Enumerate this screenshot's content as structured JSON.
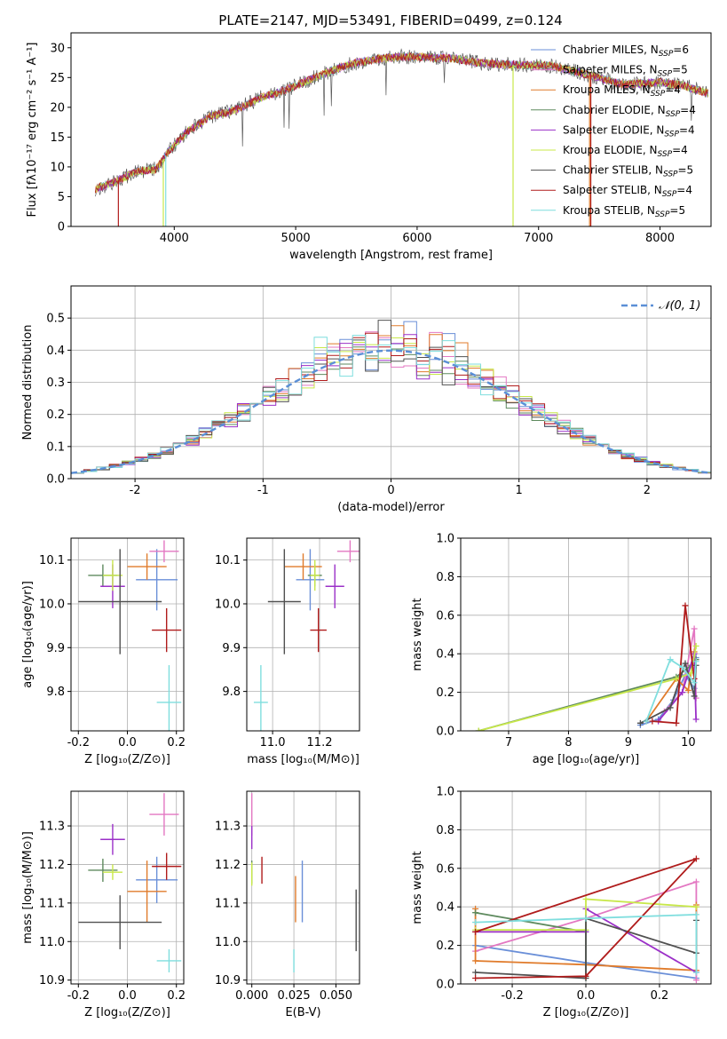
{
  "figure": {
    "title": "PLATE=2147, MJD=53491, FIBERID=0499, z=0.124"
  },
  "models": [
    {
      "label": "Chabrier MILES, N",
      "sub": "SSP",
      "suffix": "=6",
      "color": "#6a8fd8"
    },
    {
      "label": "Salpeter MILES, N",
      "sub": "SSP",
      "suffix": "=5",
      "color": "#e377c2"
    },
    {
      "label": "Kroupa MILES, N",
      "sub": "SSP",
      "suffix": "=4",
      "color": "#e07b2b"
    },
    {
      "label": "Chabrier ELODIE, N",
      "sub": "SSP",
      "suffix": "=4",
      "color": "#5e8a5e"
    },
    {
      "label": "Salpeter ELODIE, N",
      "sub": "SSP",
      "suffix": "=4",
      "color": "#9b30c8"
    },
    {
      "label": "Kroupa ELODIE, N",
      "sub": "SSP",
      "suffix": "=4",
      "color": "#c8e84a"
    },
    {
      "label": "Chabrier STELIB, N",
      "sub": "SSP",
      "suffix": "=5",
      "color": "#505050"
    },
    {
      "label": "Salpeter STELIB, N",
      "sub": "SSP",
      "suffix": "=4",
      "color": "#b01c1c"
    },
    {
      "label": "Kroupa STELIB, N",
      "sub": "SSP",
      "suffix": "=5",
      "color": "#7fdede"
    }
  ],
  "chart_data": [
    {
      "id": "spectrum",
      "type": "line",
      "xlabel": "wavelength [Angstrom, rest frame]",
      "ylabel": "Flux [fλ10⁻¹⁷ erg cm⁻² s⁻¹ A⁻¹]",
      "xlim": [
        3150,
        8420
      ],
      "ylim": [
        0,
        32.5
      ],
      "xticks": [
        4000,
        5000,
        6000,
        7000,
        8000
      ],
      "yticks": [
        0,
        5,
        10,
        15,
        20,
        25,
        30
      ],
      "continuum": [
        [
          3350,
          6.3
        ],
        [
          3500,
          7.4
        ],
        [
          3700,
          9.3
        ],
        [
          3850,
          9.6
        ],
        [
          3950,
          12.5
        ],
        [
          4100,
          15.8
        ],
        [
          4300,
          18.5
        ],
        [
          4500,
          19.5
        ],
        [
          4700,
          21.5
        ],
        [
          4900,
          22.8
        ],
        [
          5100,
          24.5
        ],
        [
          5300,
          26.2
        ],
        [
          5500,
          27.5
        ],
        [
          5700,
          28.2
        ],
        [
          5900,
          28.5
        ],
        [
          6100,
          28.4
        ],
        [
          6300,
          28.2
        ],
        [
          6500,
          27.5
        ],
        [
          6700,
          27.2
        ],
        [
          6900,
          27.1
        ],
        [
          7100,
          27.0
        ],
        [
          7400,
          25.5
        ],
        [
          7700,
          23.8
        ],
        [
          8000,
          24.2
        ],
        [
          8200,
          23.6
        ],
        [
          8400,
          22.3
        ]
      ],
      "dropouts": [
        {
          "model": 7,
          "x": 3540,
          "to": 0
        },
        {
          "model": 8,
          "x": 3930,
          "to": 0
        },
        {
          "model": 5,
          "x": 3910,
          "to": 0
        },
        {
          "model": 5,
          "x": 6790,
          "to": 0
        },
        {
          "model": 2,
          "x": 7420,
          "to": 0
        },
        {
          "model": 7,
          "x": 7430,
          "to": 0
        }
      ]
    },
    {
      "id": "residual-histogram",
      "type": "bar",
      "xlabel": "(data-model)/error",
      "ylabel": "Normed distribution",
      "xlim": [
        -2.5,
        2.5
      ],
      "ylim": [
        0,
        0.6
      ],
      "xticks": [
        -2,
        -1,
        0,
        1,
        2
      ],
      "yticks": [
        0.0,
        0.1,
        0.2,
        0.3,
        0.4,
        0.5
      ],
      "legend_label": "𝒩(0, 1)",
      "reference_color": "#5b8fd6",
      "bin_width": 0.1,
      "x_start": -2.5
    },
    {
      "id": "age-vs-metallicity",
      "type": "scatter",
      "xlabel": "Z [log₁₀(Z/Z⊙)]",
      "ylabel": "age  [log₁₀(age/yr)]",
      "xlim": [
        -0.23,
        0.23
      ],
      "ylim": [
        9.71,
        10.15
      ],
      "xticks": [
        -0.2,
        0.0,
        0.2
      ],
      "yticks": [
        9.8,
        9.9,
        10.0,
        10.1
      ],
      "points": [
        {
          "model": 0,
          "x": 0.12,
          "y": 10.055,
          "xerr": 0.085,
          "yerr": 0.07
        },
        {
          "model": 1,
          "x": 0.15,
          "y": 10.12,
          "xerr": 0.06,
          "yerr": 0.025
        },
        {
          "model": 2,
          "x": 0.08,
          "y": 10.085,
          "xerr": 0.08,
          "yerr": 0.03
        },
        {
          "model": 3,
          "x": -0.1,
          "y": 10.065,
          "xerr": 0.06,
          "yerr": 0.025
        },
        {
          "model": 4,
          "x": -0.06,
          "y": 10.04,
          "xerr": 0.05,
          "yerr": 0.05
        },
        {
          "model": 5,
          "x": -0.06,
          "y": 10.065,
          "xerr": 0.04,
          "yerr": 0.035
        },
        {
          "model": 6,
          "x": -0.03,
          "y": 10.005,
          "xerr": 0.17,
          "yerr": 0.12
        },
        {
          "model": 7,
          "x": 0.16,
          "y": 9.94,
          "xerr": 0.06,
          "yerr": 0.05
        },
        {
          "model": 8,
          "x": 0.17,
          "y": 9.775,
          "xerr": 0.05,
          "yerr": 0.085
        }
      ]
    },
    {
      "id": "age-vs-mass",
      "type": "scatter",
      "xlabel": "mass [log₁₀(M/M⊙)]",
      "ylabel": "",
      "xlim": [
        10.89,
        11.37
      ],
      "ylim": [
        9.71,
        10.15
      ],
      "xticks": [
        11.0,
        11.2
      ],
      "yticks": [
        9.8,
        9.9,
        10.0,
        10.1
      ],
      "points": [
        {
          "model": 0,
          "x": 11.16,
          "y": 10.055,
          "xerr": 0.06,
          "yerr": 0.07
        },
        {
          "model": 1,
          "x": 11.33,
          "y": 10.12,
          "xerr": 0.055,
          "yerr": 0.025
        },
        {
          "model": 2,
          "x": 11.13,
          "y": 10.085,
          "xerr": 0.08,
          "yerr": 0.03
        },
        {
          "model": 3,
          "x": 11.18,
          "y": 10.065,
          "xerr": 0.03,
          "yerr": 0.025
        },
        {
          "model": 4,
          "x": 11.265,
          "y": 10.04,
          "xerr": 0.04,
          "yerr": 0.05
        },
        {
          "model": 5,
          "x": 11.18,
          "y": 10.065,
          "xerr": 0.02,
          "yerr": 0.035
        },
        {
          "model": 6,
          "x": 11.05,
          "y": 10.005,
          "xerr": 0.07,
          "yerr": 0.12
        },
        {
          "model": 7,
          "x": 11.195,
          "y": 9.94,
          "xerr": 0.035,
          "yerr": 0.05
        },
        {
          "model": 8,
          "x": 10.95,
          "y": 9.775,
          "xerr": 0.03,
          "yerr": 0.085
        }
      ]
    },
    {
      "id": "mass-weight-vs-age",
      "type": "line",
      "xlabel": "age  [log₁₀(age/yr)]",
      "ylabel": "mass weight",
      "xlim": [
        6.2,
        10.38
      ],
      "ylim": [
        0,
        1
      ],
      "xticks": [
        7,
        8,
        9,
        10
      ],
      "yticks": [
        0.0,
        0.2,
        0.4,
        0.6,
        0.8,
        1.0
      ],
      "series": [
        {
          "model": 0,
          "points": [
            [
              9.2,
              0.03
            ],
            [
              9.5,
              0.06
            ],
            [
              9.75,
              0.16
            ],
            [
              9.95,
              0.29
            ],
            [
              10.1,
              0.22
            ],
            [
              10.13,
              0.38
            ]
          ]
        },
        {
          "model": 1,
          "points": [
            [
              9.6,
              0.1
            ],
            [
              9.9,
              0.2
            ],
            [
              10.1,
              0.53
            ],
            [
              10.13,
              0.17
            ]
          ]
        },
        {
          "model": 2,
          "points": [
            [
              9.3,
              0.05
            ],
            [
              9.8,
              0.27
            ],
            [
              10.0,
              0.21
            ],
            [
              10.1,
              0.41
            ]
          ]
        },
        {
          "model": 3,
          "points": [
            [
              6.5,
              0.0
            ],
            [
              9.8,
              0.28
            ],
            [
              10.05,
              0.34
            ],
            [
              10.13,
              0.37
            ]
          ]
        },
        {
          "model": 4,
          "points": [
            [
              9.5,
              0.05
            ],
            [
              9.9,
              0.2
            ],
            [
              10.1,
              0.4
            ],
            [
              10.13,
              0.06
            ]
          ]
        },
        {
          "model": 5,
          "points": [
            [
              6.5,
              0.0
            ],
            [
              9.8,
              0.27
            ],
            [
              10.05,
              0.3
            ],
            [
              10.13,
              0.44
            ]
          ]
        },
        {
          "model": 6,
          "points": [
            [
              9.2,
              0.04
            ],
            [
              9.7,
              0.12
            ],
            [
              9.95,
              0.35
            ],
            [
              10.1,
              0.18
            ],
            [
              10.13,
              0.34
            ]
          ]
        },
        {
          "model": 7,
          "points": [
            [
              9.4,
              0.05
            ],
            [
              9.8,
              0.04
            ],
            [
              9.95,
              0.65
            ],
            [
              10.1,
              0.27
            ]
          ]
        },
        {
          "model": 8,
          "points": [
            [
              9.3,
              0.05
            ],
            [
              9.7,
              0.37
            ],
            [
              9.9,
              0.33
            ],
            [
              10.1,
              0.25
            ],
            [
              10.13,
              0.36
            ]
          ]
        }
      ]
    },
    {
      "id": "mass-vs-metallicity",
      "type": "scatter",
      "xlabel": "Z [log₁₀(Z/Z⊙)]",
      "ylabel": "mass [log₁₀(M/M⊙)]",
      "xlim": [
        -0.23,
        0.23
      ],
      "ylim": [
        10.89,
        11.39
      ],
      "xticks": [
        -0.2,
        0.0,
        0.2
      ],
      "yticks": [
        10.9,
        11.0,
        11.1,
        11.2,
        11.3
      ],
      "points": [
        {
          "model": 0,
          "x": 0.12,
          "y": 11.16,
          "xerr": 0.085,
          "yerr": 0.06
        },
        {
          "model": 1,
          "x": 0.15,
          "y": 11.33,
          "xerr": 0.06,
          "yerr": 0.055
        },
        {
          "model": 2,
          "x": 0.08,
          "y": 11.13,
          "xerr": 0.08,
          "yerr": 0.08
        },
        {
          "model": 3,
          "x": -0.1,
          "y": 11.185,
          "xerr": 0.06,
          "yerr": 0.03
        },
        {
          "model": 4,
          "x": -0.06,
          "y": 11.265,
          "xerr": 0.05,
          "yerr": 0.04
        },
        {
          "model": 5,
          "x": -0.06,
          "y": 11.18,
          "xerr": 0.04,
          "yerr": 0.02
        },
        {
          "model": 6,
          "x": -0.03,
          "y": 11.05,
          "xerr": 0.17,
          "yerr": 0.07
        },
        {
          "model": 7,
          "x": 0.16,
          "y": 11.195,
          "xerr": 0.06,
          "yerr": 0.035
        },
        {
          "model": 8,
          "x": 0.17,
          "y": 10.95,
          "xerr": 0.05,
          "yerr": 0.03
        }
      ]
    },
    {
      "id": "mass-vs-ebv",
      "type": "scatter",
      "xlabel": "E(B-V)",
      "ylabel": "",
      "xlim": [
        -0.003,
        0.064
      ],
      "ylim": [
        10.89,
        11.39
      ],
      "xticks": [
        0.0,
        0.025,
        0.05
      ],
      "xtick_labels": [
        "0.000",
        "0.025",
        "0.050"
      ],
      "yticks": [
        10.9,
        11.0,
        11.1,
        11.2,
        11.3
      ],
      "points": [
        {
          "model": 0,
          "x": 0.03,
          "y": 11.13,
          "xerr": 0,
          "yerr": 0.08
        },
        {
          "model": 1,
          "x": 0.0,
          "y": 11.33,
          "xerr": 0,
          "yerr": 0.055
        },
        {
          "model": 2,
          "x": 0.026,
          "y": 11.11,
          "xerr": 0,
          "yerr": 0.06
        },
        {
          "model": 3,
          "x": 0.0,
          "y": 11.18,
          "xerr": 0,
          "yerr": 0.03
        },
        {
          "model": 4,
          "x": 0.0,
          "y": 11.27,
          "xerr": 0,
          "yerr": 0.03
        },
        {
          "model": 5,
          "x": 0.0,
          "y": 11.175,
          "xerr": 0,
          "yerr": 0.03
        },
        {
          "model": 6,
          "x": 0.062,
          "y": 11.055,
          "xerr": 0,
          "yerr": 0.08
        },
        {
          "model": 7,
          "x": 0.006,
          "y": 11.185,
          "xerr": 0,
          "yerr": 0.035
        },
        {
          "model": 8,
          "x": 0.025,
          "y": 10.95,
          "xerr": 0,
          "yerr": 0.03
        }
      ]
    },
    {
      "id": "mass-weight-vs-metallicity",
      "type": "line",
      "xlabel": "Z [log₁₀(Z/Z⊙)]",
      "ylabel": "mass weight",
      "xlim": [
        -0.34,
        0.34
      ],
      "ylim": [
        0,
        1
      ],
      "xticks": [
        -0.2,
        0.0,
        0.2
      ],
      "yticks": [
        0.0,
        0.2,
        0.4,
        0.6,
        0.8,
        1.0
      ],
      "series": [
        {
          "model": 0,
          "points": [
            [
              -0.3,
              0.2
            ],
            [
              0.0,
              0.11
            ],
            [
              0.3,
              0.03
            ]
          ]
        },
        {
          "model": 1,
          "points": [
            [
              -0.3,
              0.17
            ],
            [
              0.0,
              0.34
            ],
            [
              0.3,
              0.53
            ],
            [
              0.3,
              0.02
            ]
          ]
        },
        {
          "model": 2,
          "points": [
            [
              -0.3,
              0.39
            ],
            [
              -0.3,
              0.12
            ],
            [
              0.0,
              0.1
            ],
            [
              0.3,
              0.07
            ],
            [
              0.3,
              0.41
            ]
          ]
        },
        {
          "model": 3,
          "points": [
            [
              -0.3,
              0.37
            ],
            [
              0.0,
              0.27
            ],
            [
              0.0,
              0.03
            ]
          ]
        },
        {
          "model": 4,
          "points": [
            [
              -0.3,
              0.27
            ],
            [
              0.0,
              0.27
            ],
            [
              0.0,
              0.39
            ],
            [
              0.3,
              0.06
            ]
          ]
        },
        {
          "model": 5,
          "points": [
            [
              -0.3,
              0.28
            ],
            [
              0.0,
              0.28
            ],
            [
              0.0,
              0.44
            ],
            [
              0.3,
              0.4
            ]
          ]
        },
        {
          "model": 6,
          "points": [
            [
              -0.3,
              0.06
            ],
            [
              0.0,
              0.03
            ],
            [
              0.0,
              0.34
            ],
            [
              0.3,
              0.16
            ],
            [
              0.3,
              0.33
            ]
          ]
        },
        {
          "model": 7,
          "points": [
            [
              -0.3,
              0.03
            ],
            [
              0.0,
              0.04
            ],
            [
              0.3,
              0.65
            ],
            [
              -0.3,
              0.27
            ]
          ]
        },
        {
          "model": 8,
          "points": [
            [
              -0.3,
              0.32
            ],
            [
              0.0,
              0.34
            ],
            [
              0.3,
              0.36
            ],
            [
              0.3,
              0.06
            ]
          ]
        }
      ]
    }
  ]
}
